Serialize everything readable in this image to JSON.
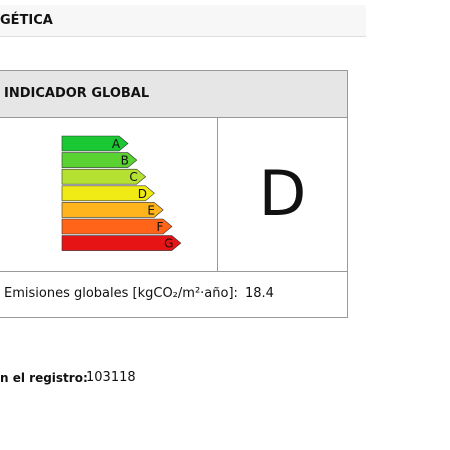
{
  "header": {
    "title": "GÉTICA"
  },
  "indicator": {
    "title": "INDICADOR GLOBAL",
    "scale": [
      "A",
      "B",
      "C",
      "D",
      "E",
      "F",
      "G"
    ],
    "rating": "D",
    "emissions_label": "Emisiones globales [kgCO₂/m²·año]:",
    "emissions_value": 18.4
  },
  "registry": {
    "label": "n el registro:",
    "number": 103118
  }
}
